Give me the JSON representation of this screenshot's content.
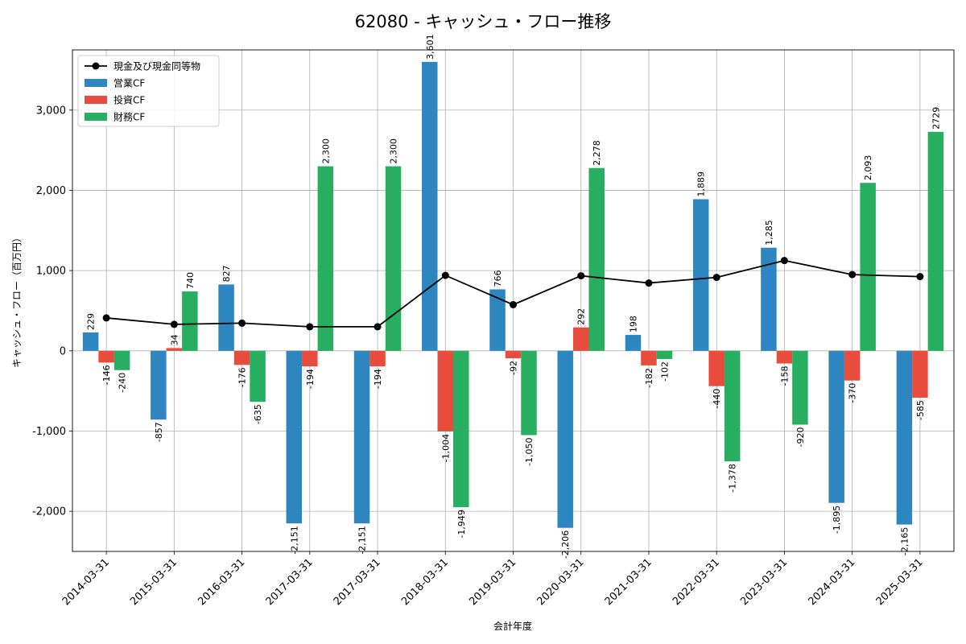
{
  "chart_data": {
    "type": "bar",
    "title": "62080 - キャッシュ・フロー推移",
    "xlabel": "会計年度",
    "ylabel": "キャッシュ・フロー（百万円）",
    "categories": [
      "2014-03-31",
      "2015-03-31",
      "2016-03-31",
      "2017-03-31",
      "2017-03-31",
      "2018-03-31",
      "2019-03-31",
      "2020-03-31",
      "2021-03-31",
      "2022-03-31",
      "2023-03-31",
      "2024-03-31",
      "2025-03-31"
    ],
    "ylim": [
      -2500,
      3750
    ],
    "yticks": [
      -2000,
      -1000,
      0,
      1000,
      2000,
      3000
    ],
    "ytick_labels": [
      "-2,000",
      "-1,000",
      "0",
      "1,000",
      "2,000",
      "3,000"
    ],
    "grid": true,
    "legend_position": "top-left",
    "series": [
      {
        "name": "営業CF",
        "type": "bar",
        "color": "#2e86c1",
        "values": [
          229,
          -857,
          827,
          -2151,
          -2151,
          3601,
          766,
          -2206,
          198,
          1889,
          1285,
          -1895,
          -2165
        ],
        "labels": [
          "229",
          "-857",
          "827",
          "-2,151",
          "-2,151",
          "3,601",
          "766",
          "-2,206",
          "198",
          "1,889",
          "1,285",
          "-1,895",
          "-2,165"
        ]
      },
      {
        "name": "投資CF",
        "type": "bar",
        "color": "#e74c3c",
        "values": [
          -146,
          34,
          -176,
          -194,
          -194,
          -1004,
          -92,
          292,
          -182,
          -440,
          -158,
          -370,
          -585
        ],
        "labels": [
          "-146",
          "34",
          "-176",
          "-194",
          "-194",
          "-1,004",
          "-92",
          "292",
          "-182",
          "-440",
          "-158",
          "-370",
          "-585"
        ]
      },
      {
        "name": "財務CF",
        "type": "bar",
        "color": "#27ae60",
        "values": [
          -240,
          740,
          -635,
          2300,
          2300,
          -1949,
          -1050,
          2278,
          -102,
          -1378,
          -920,
          2093,
          2729
        ],
        "labels": [
          "-240",
          "740",
          "-635",
          "2,300",
          "2,300",
          "-1,949",
          "-1,050",
          "2,278",
          "-102",
          "-1,378",
          "-920",
          "2,093",
          "2729"
        ]
      },
      {
        "name": "現金及び現金同等物",
        "type": "line",
        "color": "#000000",
        "values": [
          410,
          330,
          345,
          300,
          300,
          940,
          575,
          935,
          845,
          915,
          1125,
          950,
          925
        ]
      }
    ]
  }
}
